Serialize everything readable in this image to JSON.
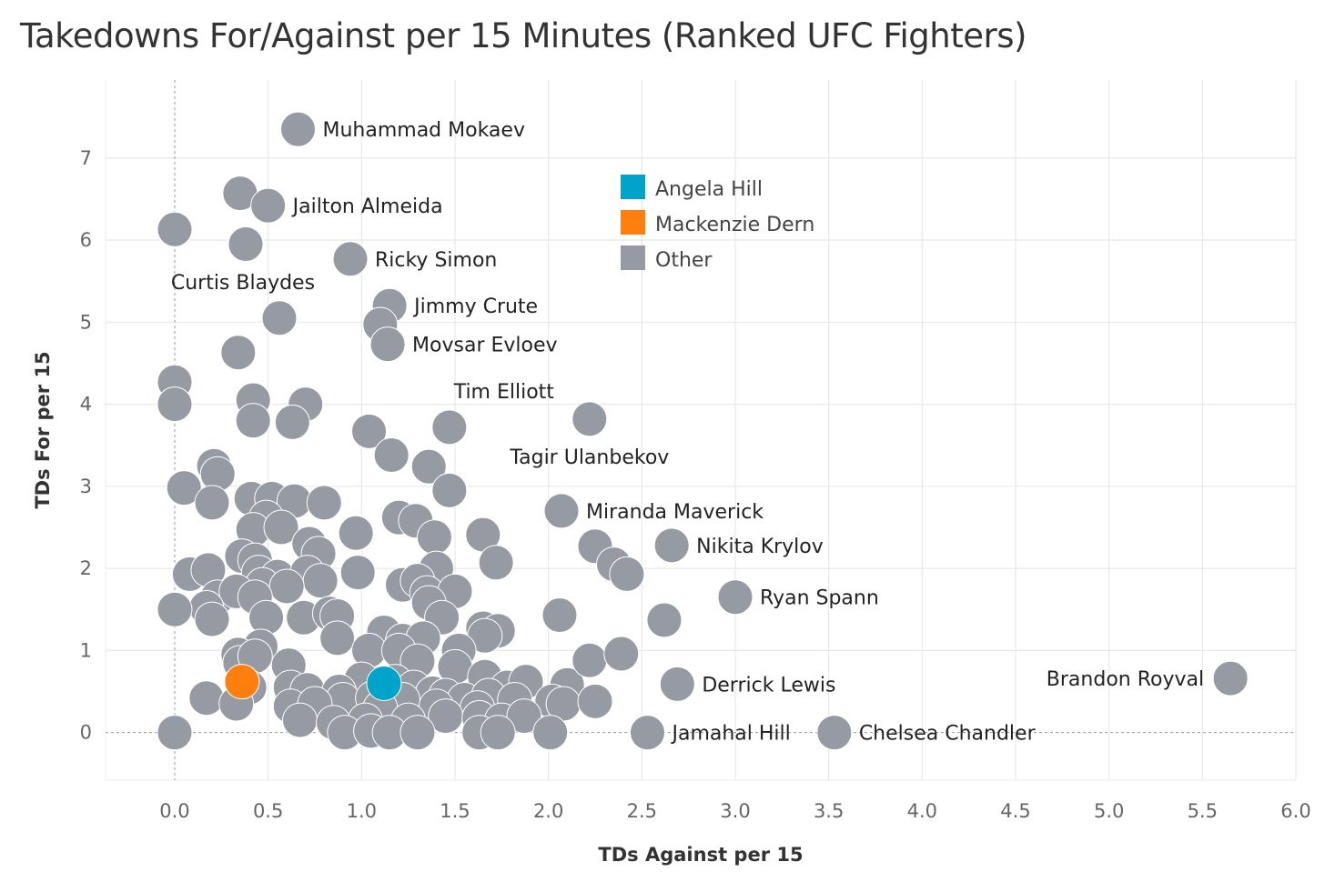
{
  "chart_data": {
    "type": "scatter",
    "title": "Takedowns For/Against per 15 Minutes (Ranked UFC Fighters)",
    "xlabel": "TDs Against per 15",
    "ylabel": "TDs For per 15",
    "xlim": [
      -0.37,
      6.0
    ],
    "ylim": [
      -0.58,
      7.95
    ],
    "xticks": [
      0.0,
      0.5,
      1.0,
      1.5,
      2.0,
      2.5,
      3.0,
      3.5,
      4.0,
      4.5,
      5.0,
      5.5,
      6.0
    ],
    "xtick_labels": [
      "0.0",
      "0.5",
      "1.0",
      "1.5",
      "2.0",
      "2.5",
      "3.0",
      "3.5",
      "4.0",
      "4.5",
      "5.0",
      "5.5",
      "6.0"
    ],
    "yticks": [
      0,
      1,
      2,
      3,
      4,
      5,
      6,
      7
    ],
    "ytick_labels": [
      "0",
      "1",
      "2",
      "3",
      "4",
      "5",
      "6",
      "7"
    ],
    "grid": true,
    "legend": {
      "placement": "top-center",
      "entries": [
        {
          "name": "Angela Hill",
          "color": "#00A3C9"
        },
        {
          "name": "Mackenzie Dern",
          "color": "#FF7F0E"
        },
        {
          "name": "Other",
          "color": "#959AA3"
        }
      ]
    },
    "series": [
      {
        "name": "Other",
        "color": "#959AA3",
        "points": [
          {
            "x": 0.66,
            "y": 7.35,
            "label": "Muhammad Mokaev"
          },
          {
            "x": 0.35,
            "y": 6.57
          },
          {
            "x": 0.5,
            "y": 6.42,
            "label": "Jailton Almeida"
          },
          {
            "x": 0.0,
            "y": 6.13
          },
          {
            "x": 0.38,
            "y": 5.95
          },
          {
            "x": 0.94,
            "y": 5.77,
            "label": "Ricky Simon"
          },
          {
            "x": 0.56,
            "y": 5.05,
            "label": "Curtis Blaydes",
            "label_pos": "above-left"
          },
          {
            "x": 1.15,
            "y": 5.2,
            "label": "Jimmy Crute"
          },
          {
            "x": 1.1,
            "y": 4.97
          },
          {
            "x": 1.14,
            "y": 4.73,
            "label": "Movsar Evloev"
          },
          {
            "x": 0.34,
            "y": 4.63
          },
          {
            "x": 0.0,
            "y": 4.27
          },
          {
            "x": 0.0,
            "y": 4.0
          },
          {
            "x": 0.42,
            "y": 4.05
          },
          {
            "x": 0.7,
            "y": 4.0
          },
          {
            "x": 0.42,
            "y": 3.8
          },
          {
            "x": 0.63,
            "y": 3.78
          },
          {
            "x": 1.47,
            "y": 3.72,
            "label": "Tim Elliott",
            "label_pos": "above-right"
          },
          {
            "x": 2.22,
            "y": 3.82,
            "label": "Tagir Ulanbekov",
            "label_pos": "below-left"
          },
          {
            "x": 1.04,
            "y": 3.67
          },
          {
            "x": 1.16,
            "y": 3.38
          },
          {
            "x": 1.36,
            "y": 3.24
          },
          {
            "x": 1.47,
            "y": 2.95
          },
          {
            "x": 0.21,
            "y": 3.25
          },
          {
            "x": 0.23,
            "y": 3.15
          },
          {
            "x": 0.05,
            "y": 2.98
          },
          {
            "x": 0.2,
            "y": 2.8
          },
          {
            "x": 0.41,
            "y": 2.85
          },
          {
            "x": 0.52,
            "y": 2.85
          },
          {
            "x": 0.64,
            "y": 2.82
          },
          {
            "x": 0.8,
            "y": 2.8
          },
          {
            "x": 0.49,
            "y": 2.62
          },
          {
            "x": 0.42,
            "y": 2.47
          },
          {
            "x": 0.57,
            "y": 2.5
          },
          {
            "x": 0.97,
            "y": 2.43
          },
          {
            "x": 1.2,
            "y": 2.62
          },
          {
            "x": 1.29,
            "y": 2.58
          },
          {
            "x": 1.39,
            "y": 2.38
          },
          {
            "x": 1.65,
            "y": 2.41
          },
          {
            "x": 1.72,
            "y": 2.07
          },
          {
            "x": 0.72,
            "y": 2.3
          },
          {
            "x": 0.77,
            "y": 2.18
          },
          {
            "x": 0.36,
            "y": 2.15
          },
          {
            "x": 0.43,
            "y": 2.1
          },
          {
            "x": 0.45,
            "y": 1.95
          },
          {
            "x": 0.55,
            "y": 1.9
          },
          {
            "x": 0.71,
            "y": 1.95
          },
          {
            "x": 0.78,
            "y": 1.85
          },
          {
            "x": 0.98,
            "y": 1.95
          },
          {
            "x": 1.4,
            "y": 2.0
          },
          {
            "x": 1.22,
            "y": 1.8
          },
          {
            "x": 1.3,
            "y": 1.85
          },
          {
            "x": 1.35,
            "y": 1.7
          },
          {
            "x": 1.5,
            "y": 1.72
          },
          {
            "x": 1.36,
            "y": 1.58
          },
          {
            "x": 1.43,
            "y": 1.4
          },
          {
            "x": 0.08,
            "y": 1.93
          },
          {
            "x": 0.18,
            "y": 1.98
          },
          {
            "x": 0.47,
            "y": 1.8
          },
          {
            "x": 0.6,
            "y": 1.78
          },
          {
            "x": 0.23,
            "y": 1.65
          },
          {
            "x": 0.33,
            "y": 1.72
          },
          {
            "x": 0.43,
            "y": 1.65
          },
          {
            "x": 0.17,
            "y": 1.52
          },
          {
            "x": 0.0,
            "y": 1.5
          },
          {
            "x": 0.2,
            "y": 1.38
          },
          {
            "x": 0.49,
            "y": 1.4
          },
          {
            "x": 0.69,
            "y": 1.4
          },
          {
            "x": 0.83,
            "y": 1.45
          },
          {
            "x": 0.87,
            "y": 1.42
          },
          {
            "x": 0.87,
            "y": 1.15
          },
          {
            "x": 2.07,
            "y": 2.7,
            "label": "Miranda Maverick"
          },
          {
            "x": 2.25,
            "y": 2.27
          },
          {
            "x": 2.35,
            "y": 2.05
          },
          {
            "x": 2.42,
            "y": 1.93
          },
          {
            "x": 2.66,
            "y": 2.28,
            "label": "Nikita Krylov"
          },
          {
            "x": 3.0,
            "y": 1.65,
            "label": "Ryan Spann"
          },
          {
            "x": 2.06,
            "y": 1.43
          },
          {
            "x": 2.62,
            "y": 1.37
          },
          {
            "x": 1.65,
            "y": 1.27
          },
          {
            "x": 1.73,
            "y": 1.24
          },
          {
            "x": 1.66,
            "y": 1.18
          },
          {
            "x": 1.12,
            "y": 1.22
          },
          {
            "x": 1.22,
            "y": 1.12
          },
          {
            "x": 1.33,
            "y": 1.15
          },
          {
            "x": 1.04,
            "y": 1.0
          },
          {
            "x": 1.2,
            "y": 1.0
          },
          {
            "x": 1.52,
            "y": 1.0
          },
          {
            "x": 1.3,
            "y": 0.87
          },
          {
            "x": 1.5,
            "y": 0.8
          },
          {
            "x": 0.46,
            "y": 1.05
          },
          {
            "x": 0.34,
            "y": 0.95
          },
          {
            "x": 0.35,
            "y": 0.85
          },
          {
            "x": 0.43,
            "y": 0.93
          },
          {
            "x": 0.61,
            "y": 0.82
          },
          {
            "x": 1.0,
            "y": 0.65
          },
          {
            "x": 1.18,
            "y": 0.62
          },
          {
            "x": 1.28,
            "y": 0.55
          },
          {
            "x": 1.38,
            "y": 0.48
          },
          {
            "x": 1.66,
            "y": 0.68
          },
          {
            "x": 1.78,
            "y": 0.55
          },
          {
            "x": 1.88,
            "y": 0.62
          },
          {
            "x": 2.1,
            "y": 0.58
          },
          {
            "x": 2.22,
            "y": 0.88
          },
          {
            "x": 2.39,
            "y": 0.96
          },
          {
            "x": 2.69,
            "y": 0.59,
            "label": "Derrick Lewis"
          },
          {
            "x": 5.65,
            "y": 0.66,
            "label": "Brandon Royval",
            "label_pos": "left"
          },
          {
            "x": 0.4,
            "y": 0.55
          },
          {
            "x": 0.62,
            "y": 0.55
          },
          {
            "x": 0.71,
            "y": 0.52
          },
          {
            "x": 0.88,
            "y": 0.5
          },
          {
            "x": 0.9,
            "y": 0.4
          },
          {
            "x": 1.06,
            "y": 0.42
          },
          {
            "x": 1.22,
            "y": 0.4
          },
          {
            "x": 1.45,
            "y": 0.45
          },
          {
            "x": 1.55,
            "y": 0.4
          },
          {
            "x": 1.68,
            "y": 0.45
          },
          {
            "x": 1.82,
            "y": 0.4
          },
          {
            "x": 0.17,
            "y": 0.42
          },
          {
            "x": 0.33,
            "y": 0.35
          },
          {
            "x": 0.62,
            "y": 0.32
          },
          {
            "x": 0.75,
            "y": 0.35
          },
          {
            "x": 1.1,
            "y": 0.3
          },
          {
            "x": 1.4,
            "y": 0.32
          },
          {
            "x": 1.62,
            "y": 0.3
          },
          {
            "x": 2.02,
            "y": 0.38
          },
          {
            "x": 2.08,
            "y": 0.35
          },
          {
            "x": 2.25,
            "y": 0.38
          },
          {
            "x": 0.67,
            "y": 0.15
          },
          {
            "x": 0.85,
            "y": 0.12
          },
          {
            "x": 1.02,
            "y": 0.15
          },
          {
            "x": 1.25,
            "y": 0.15
          },
          {
            "x": 1.45,
            "y": 0.2
          },
          {
            "x": 1.63,
            "y": 0.18
          },
          {
            "x": 1.75,
            "y": 0.15
          },
          {
            "x": 1.87,
            "y": 0.2
          },
          {
            "x": 0.0,
            "y": 0.0
          },
          {
            "x": 0.91,
            "y": 0.0
          },
          {
            "x": 1.05,
            "y": 0.02
          },
          {
            "x": 1.15,
            "y": 0.0
          },
          {
            "x": 1.3,
            "y": 0.0
          },
          {
            "x": 1.63,
            "y": 0.0
          },
          {
            "x": 1.73,
            "y": 0.0
          },
          {
            "x": 2.01,
            "y": 0.0
          },
          {
            "x": 2.53,
            "y": 0.0,
            "label": "Jamahal Hill"
          },
          {
            "x": 3.53,
            "y": 0.0,
            "label": "Chelsea Chandler"
          }
        ]
      },
      {
        "name": "Mackenzie Dern",
        "color": "#FF7F0E",
        "points": [
          {
            "x": 0.36,
            "y": 0.62
          }
        ]
      },
      {
        "name": "Angela Hill",
        "color": "#00A3C9",
        "points": [
          {
            "x": 1.12,
            "y": 0.6
          }
        ]
      }
    ]
  }
}
